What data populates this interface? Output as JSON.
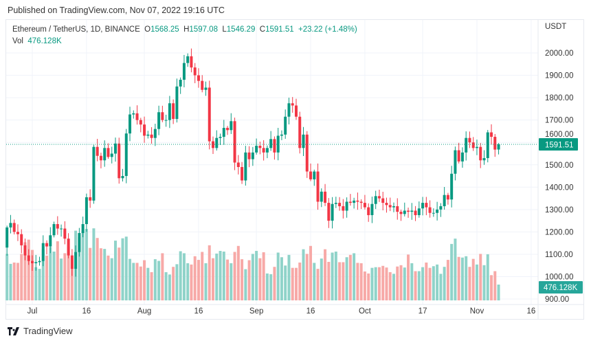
{
  "published": "Published on TradingView.com, Nov 07, 2022 19:16 UTC",
  "legend": {
    "symbol": "Ethereum / TetherUS, 1D, BINANCE",
    "o_label": "O",
    "o": "1568.25",
    "h_label": "H",
    "h": "1597.08",
    "l_label": "L",
    "l": "1546.29",
    "c_label": "C",
    "c": "1591.51",
    "change": "+23.22 (+1.48%)",
    "vol_label": "Vol",
    "vol": "476.128K"
  },
  "footer": {
    "brand": "TradingView"
  },
  "colors": {
    "up": "#089981",
    "down": "#f23645",
    "vol_up": "#8fd3c9",
    "vol_down": "#f7a9a7",
    "last_price": "#089981"
  },
  "chart_data": {
    "type": "candlestick",
    "currency_label": "USDT",
    "first_date": "2022-06-24",
    "last_date": "2022-11-07",
    "ylim": [
      870,
      2060
    ],
    "yticks": [
      "2000.00",
      "1900.00",
      "1800.00",
      "1700.00",
      "1600.00",
      "1500.00",
      "1400.00",
      "1300.00",
      "1200.00",
      "1100.00",
      "1000.00",
      "900.00"
    ],
    "ytick_values": [
      2000,
      1900,
      1800,
      1700,
      1600,
      1500,
      1400,
      1300,
      1200,
      1100,
      1000,
      900
    ],
    "xticks": [
      {
        "label": "Jul",
        "day": 7
      },
      {
        "label": "16",
        "day": 22
      },
      {
        "label": "Aug",
        "day": 38
      },
      {
        "label": "16",
        "day": 53
      },
      {
        "label": "Sep",
        "day": 69
      },
      {
        "label": "16",
        "day": 84
      },
      {
        "label": "Oct",
        "day": 99
      },
      {
        "label": "17",
        "day": 115
      },
      {
        "label": "Nov",
        "day": 130
      },
      {
        "label": "16",
        "day": 145
      }
    ],
    "first_open": 1130,
    "closes": [
      1220,
      1240,
      1200,
      1190,
      1140,
      1095,
      1070,
      1060,
      1065,
      1070,
      1150,
      1135,
      1185,
      1235,
      1215,
      1215,
      1170,
      1095,
      1035,
      1110,
      1195,
      1235,
      1355,
      1340,
      1580,
      1540,
      1520,
      1575,
      1535,
      1550,
      1595,
      1440,
      1450,
      1640,
      1725,
      1730,
      1700,
      1680,
      1630,
      1635,
      1620,
      1660,
      1735,
      1700,
      1700,
      1775,
      1705,
      1850,
      1880,
      1955,
      1985,
      1935,
      1900,
      1875,
      1835,
      1845,
      1605,
      1575,
      1620,
      1625,
      1665,
      1655,
      1695,
      1510,
      1490,
      1430,
      1555,
      1525,
      1555,
      1585,
      1575,
      1555,
      1575,
      1615,
      1555,
      1630,
      1635,
      1715,
      1775,
      1765,
      1715,
      1575,
      1635,
      1470,
      1435,
      1470,
      1335,
      1380,
      1330,
      1250,
      1325,
      1330,
      1315,
      1295,
      1335,
      1330,
      1340,
      1335,
      1330,
      1310,
      1275,
      1325,
      1360,
      1350,
      1330,
      1320,
      1310,
      1315,
      1290,
      1280,
      1295,
      1290,
      1295,
      1275,
      1305,
      1330,
      1310,
      1285,
      1285,
      1300,
      1315,
      1365,
      1345,
      1460,
      1565,
      1515,
      1555,
      1620,
      1600,
      1575,
      1580,
      1520,
      1530,
      1645,
      1625,
      1568,
      1591.51
    ],
    "last_high": 1597.08,
    "last_low": 1546.29,
    "volumes_k": [
      1400,
      1100,
      1140,
      1130,
      1400,
      1750,
      1830,
      1520,
      1000,
      950,
      1530,
      1350,
      1610,
      1470,
      1780,
      1260,
      1420,
      1610,
      1270,
      2100,
      1900,
      2100,
      2150,
      1580,
      2170,
      1880,
      1570,
      1550,
      1350,
      1270,
      1800,
      1590,
      1870,
      1920,
      1250,
      1130,
      1130,
      1020,
      1210,
      980,
      850,
      1240,
      1190,
      1420,
      850,
      780,
      1010,
      1090,
      1480,
      1420,
      1120,
      1080,
      1330,
      1220,
      1460,
      1120,
      1660,
      1270,
      1410,
      1490,
      1470,
      1230,
      1120,
      1460,
      1640,
      1240,
      940,
      1210,
      1400,
      1490,
      1270,
      1450,
      810,
      790,
      1010,
      1440,
      1300,
      1050,
      1370,
      980,
      980,
      1140,
      1540,
      1400,
      1640,
      1130,
      950,
      1260,
      1540,
      1160,
      1440,
      1470,
      1150,
      1150,
      1300,
      1370,
      1420,
      1130,
      1120,
      870,
      810,
      980,
      1000,
      1000,
      1040,
      990,
      850,
      800,
      1020,
      1060,
      990,
      1380,
      1120,
      880,
      880,
      1000,
      1140,
      980,
      1030,
      1080,
      800,
      1010,
      1220,
      1700,
      1860,
      1310,
      1290,
      1330,
      1010,
      1250,
      1080,
      1400,
      1060,
      1390,
      760,
      880,
      476.128
    ],
    "last_price_label": "1591.51",
    "last_vol_label": "476.128K"
  }
}
